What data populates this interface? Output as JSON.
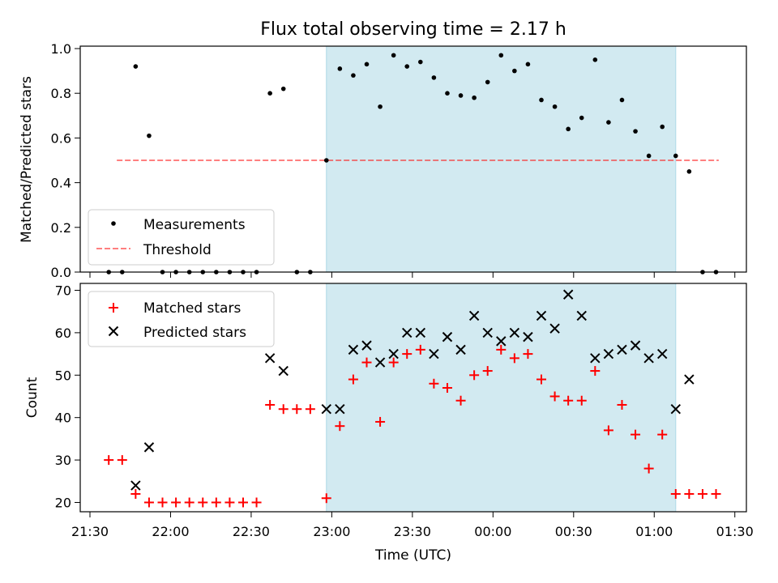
{
  "title": "Flux total observing time = 2.17 h",
  "colors": {
    "observing_band": "#add8e6",
    "threshold": "#ff0000",
    "matched": "#ff0000",
    "predicted": "#000000",
    "measurements": "#000000"
  },
  "chart_data": [
    {
      "type": "scatter",
      "ylabel": "Matched/Predicted stars",
      "xlabel": "",
      "ylim": [
        0,
        1.0
      ],
      "yticks": [
        "0.0",
        "0.2",
        "0.4",
        "0.6",
        "0.8",
        "1.0"
      ],
      "observing_window": [
        "22:58",
        "01:08"
      ],
      "legend": {
        "placement": "lower-left",
        "entries": [
          "Measurements",
          "Threshold"
        ]
      },
      "series": [
        {
          "name": "Measurements",
          "x": [
            "21:37",
            "21:42",
            "21:47",
            "21:52",
            "21:57",
            "22:02",
            "22:07",
            "22:12",
            "22:17",
            "22:22",
            "22:27",
            "22:32",
            "22:37",
            "22:42",
            "22:47",
            "22:52",
            "22:58",
            "23:03",
            "23:08",
            "23:13",
            "23:18",
            "23:23",
            "23:28",
            "23:33",
            "23:38",
            "23:43",
            "23:48",
            "23:53",
            "23:58",
            "00:03",
            "00:08",
            "00:13",
            "00:18",
            "00:23",
            "00:28",
            "00:33",
            "00:38",
            "00:43",
            "00:48",
            "00:53",
            "00:58",
            "01:03",
            "01:08",
            "01:13",
            "01:18",
            "01:23"
          ],
          "values": [
            0,
            0,
            0.92,
            0.61,
            0,
            0,
            0,
            0,
            0,
            0,
            0,
            0,
            0.8,
            0.82,
            0,
            0,
            0.5,
            0.91,
            0.88,
            0.93,
            0.74,
            0.97,
            0.92,
            0.94,
            0.87,
            0.8,
            0.79,
            0.78,
            0.85,
            0.97,
            0.9,
            0.93,
            0.77,
            0.74,
            0.64,
            0.69,
            0.95,
            0.67,
            0.77,
            0.63,
            0.52,
            0.65,
            0.52,
            0.45,
            0,
            0
          ]
        },
        {
          "name": "Threshold",
          "x": [
            "21:40",
            "01:24"
          ],
          "values": [
            0.5,
            0.5
          ]
        }
      ]
    },
    {
      "type": "scatter",
      "ylabel": "Count",
      "xlabel": "Time (UTC)",
      "ylim": [
        17.5,
        71.5
      ],
      "yticks": [
        "20",
        "30",
        "40",
        "50",
        "60",
        "70"
      ],
      "xticks": [
        "21:30",
        "22:00",
        "22:30",
        "23:00",
        "23:30",
        "00:00",
        "00:30",
        "01:00",
        "01:30"
      ],
      "observing_window": [
        "22:58",
        "01:08"
      ],
      "legend": {
        "placement": "upper-left",
        "entries": [
          "Matched stars",
          "Predicted stars"
        ]
      },
      "series": [
        {
          "name": "Matched stars",
          "x": [
            "21:37",
            "21:42",
            "21:47",
            "21:52",
            "21:57",
            "22:02",
            "22:07",
            "22:12",
            "22:17",
            "22:22",
            "22:27",
            "22:32",
            "22:37",
            "22:42",
            "22:47",
            "22:52",
            "22:58",
            "23:03",
            "23:08",
            "23:13",
            "23:18",
            "23:23",
            "23:28",
            "23:33",
            "23:38",
            "23:43",
            "23:48",
            "23:53",
            "23:58",
            "00:03",
            "00:08",
            "00:13",
            "00:18",
            "00:23",
            "00:28",
            "00:33",
            "00:38",
            "00:43",
            "00:48",
            "00:53",
            "00:58",
            "01:03",
            "01:08",
            "01:13",
            "01:18",
            "01:23"
          ],
          "values": [
            30,
            30,
            22,
            20,
            20,
            20,
            20,
            20,
            20,
            20,
            20,
            20,
            43,
            42,
            42,
            42,
            21,
            38,
            49,
            53,
            39,
            53,
            55,
            56,
            48,
            47,
            44,
            50,
            51,
            56,
            54,
            55,
            49,
            45,
            44,
            44,
            51,
            37,
            43,
            36,
            28,
            36,
            22,
            22,
            22,
            22
          ]
        },
        {
          "name": "Predicted stars",
          "x": [
            "21:47",
            "21:52",
            "22:37",
            "22:42",
            "22:58",
            "23:03",
            "23:08",
            "23:13",
            "23:18",
            "23:23",
            "23:28",
            "23:33",
            "23:38",
            "23:43",
            "23:48",
            "23:53",
            "23:58",
            "00:03",
            "00:08",
            "00:13",
            "00:18",
            "00:23",
            "00:28",
            "00:33",
            "00:38",
            "00:43",
            "00:48",
            "00:53",
            "00:58",
            "01:03",
            "01:08",
            "01:13"
          ],
          "values": [
            24,
            33,
            54,
            51,
            42,
            42,
            56,
            57,
            53,
            55,
            60,
            60,
            55,
            59,
            56,
            64,
            60,
            58,
            60,
            59,
            64,
            61,
            69,
            64,
            54,
            55,
            56,
            57,
            54,
            55,
            42,
            49
          ]
        }
      ]
    }
  ]
}
